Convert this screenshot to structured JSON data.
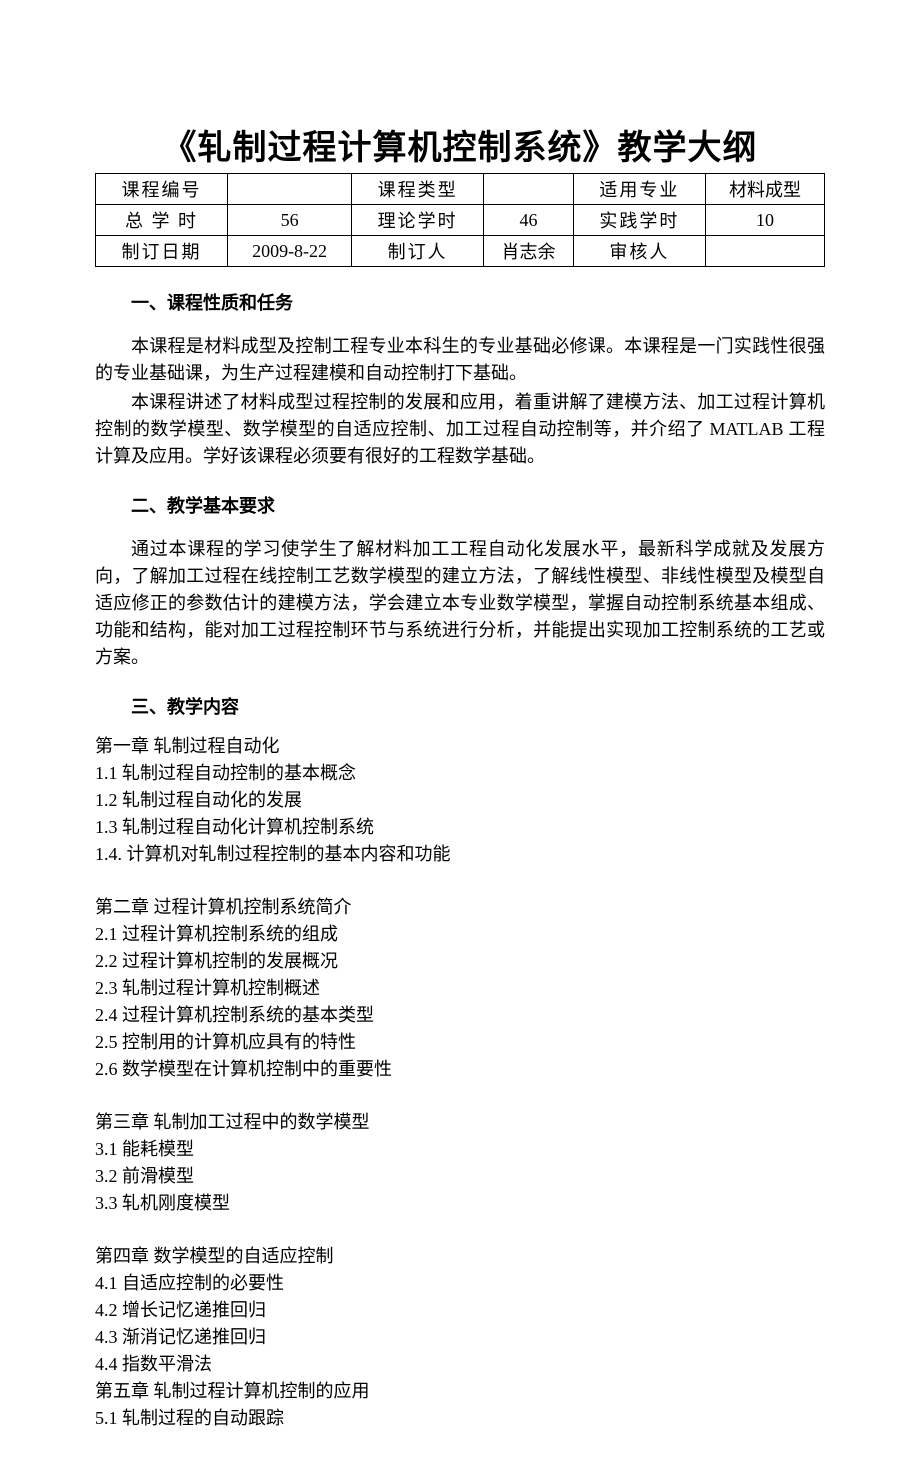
{
  "title": "《轧制过程计算机控制系统》教学大纲",
  "table": {
    "rows": [
      [
        "课程编号",
        "",
        "课程类型",
        "",
        "适用专业",
        "材料成型"
      ],
      [
        "总 学 时",
        "56",
        "理论学时",
        "46",
        "实践学时",
        "10"
      ],
      [
        "制订日期",
        "2009-8-22",
        "制订人",
        "肖志余",
        "审核人",
        ""
      ]
    ]
  },
  "sections": [
    {
      "heading": "一、课程性质和任务",
      "paragraphs": [
        "本课程是材料成型及控制工程专业本科生的专业基础必修课。本课程是一门实践性很强的专业基础课，为生产过程建模和自动控制打下基础。",
        "本课程讲述了材料成型过程控制的发展和应用，着重讲解了建模方法、加工过程计算机控制的数学模型、数学模型的自适应控制、加工过程自动控制等，并介绍了 MATLAB 工程计算及应用。学好该课程必须要有很好的工程数学基础。"
      ]
    },
    {
      "heading": "二、教学基本要求",
      "paragraphs": [
        "通过本课程的学习使学生了解材料加工工程自动化发展水平，最新科学成就及发展方向，了解加工过程在线控制工艺数学模型的建立方法，了解线性模型、非线性模型及模型自适应修正的参数估计的建模方法，学会建立本专业数学模型，掌握自动控制系统基本组成、功能和结构，能对加工过程控制环节与系统进行分析，并能提出实现加工控制系统的工艺或方案。"
      ]
    },
    {
      "heading": "三、教学内容",
      "toc": [
        {
          "line": "第一章  轧制过程自动化"
        },
        {
          "line": "1.1 轧制过程自动控制的基本概念"
        },
        {
          "line": "1.2  轧制过程自动化的发展"
        },
        {
          "line": "1.3 轧制过程自动化计算机控制系统"
        },
        {
          "line": "1.4.  计算机对轧制过程控制的基本内容和功能"
        },
        {
          "gap": true
        },
        {
          "line": "第二章  过程计算机控制系统简介"
        },
        {
          "line": "2.1  过程计算机控制系统的组成"
        },
        {
          "line": "2.2  过程计算机控制的发展概况"
        },
        {
          "line": "2.3  轧制过程计算机控制概述"
        },
        {
          "line": "2.4  过程计算机控制系统的基本类型"
        },
        {
          "line": "2.5 控制用的计算机应具有的特性"
        },
        {
          "line": "2.6  数学模型在计算机控制中的重要性"
        },
        {
          "gap": true
        },
        {
          "line": "第三章  轧制加工过程中的数学模型"
        },
        {
          "line": "3.1  能耗模型"
        },
        {
          "line": "3.2  前滑模型"
        },
        {
          "line": "3.3  轧机刚度模型"
        },
        {
          "gap": true
        },
        {
          "line": "第四章  数学模型的自适应控制"
        },
        {
          "line": "4.1  自适应控制的必要性"
        },
        {
          "line": "4.2  增长记忆递推回归"
        },
        {
          "line": "4.3  渐消记忆递推回归"
        },
        {
          "line": "4.4  指数平滑法"
        },
        {
          "line": "第五章  轧制过程计算机控制的应用"
        },
        {
          "line": "5.1 轧制过程的自动跟踪"
        }
      ]
    }
  ]
}
